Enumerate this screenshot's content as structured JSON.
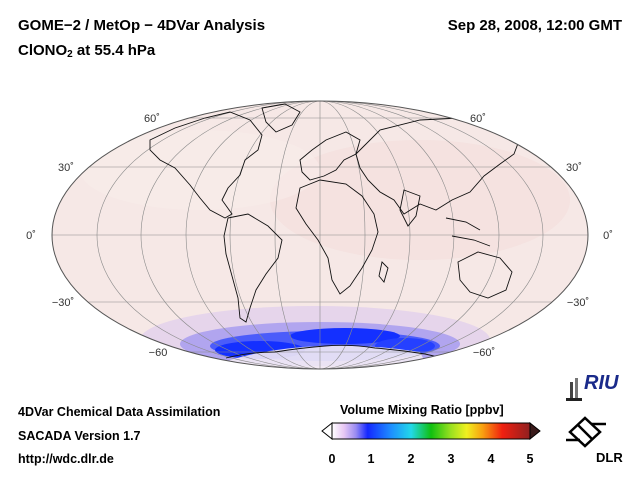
{
  "header": {
    "title_left": "GOME−2 / MetOp − 4DVar Analysis",
    "title_right": "Sep 28, 2008, 12:00 GMT",
    "subtitle_main": "ClONO",
    "subtitle_sub": "2",
    "subtitle_rest": " at 55.4 hPa"
  },
  "map": {
    "projection": "Hammer-Aitoff global",
    "lat_labels_left": [
      "60˚",
      "30˚",
      "0˚",
      "−30˚",
      "−60"
    ],
    "lat_labels_right": [
      "60˚",
      "30˚",
      "0˚",
      "−30˚",
      "−60˚"
    ],
    "background_color": "#f6e8e6",
    "highlight_color": "#2040ff"
  },
  "colorbar": {
    "title": "Volume Mixing Ratio [ppbv]",
    "ticks": [
      "0",
      "1",
      "2",
      "3",
      "4",
      "5"
    ],
    "range": [
      0,
      5
    ]
  },
  "footer": {
    "line1": "4DVar Chemical Data Assimilation",
    "line2": "SACADA Version 1.7",
    "line3": "http://wdc.dlr.de"
  },
  "logos": {
    "riu_text": "RIU",
    "dlr_text": "DLR"
  }
}
